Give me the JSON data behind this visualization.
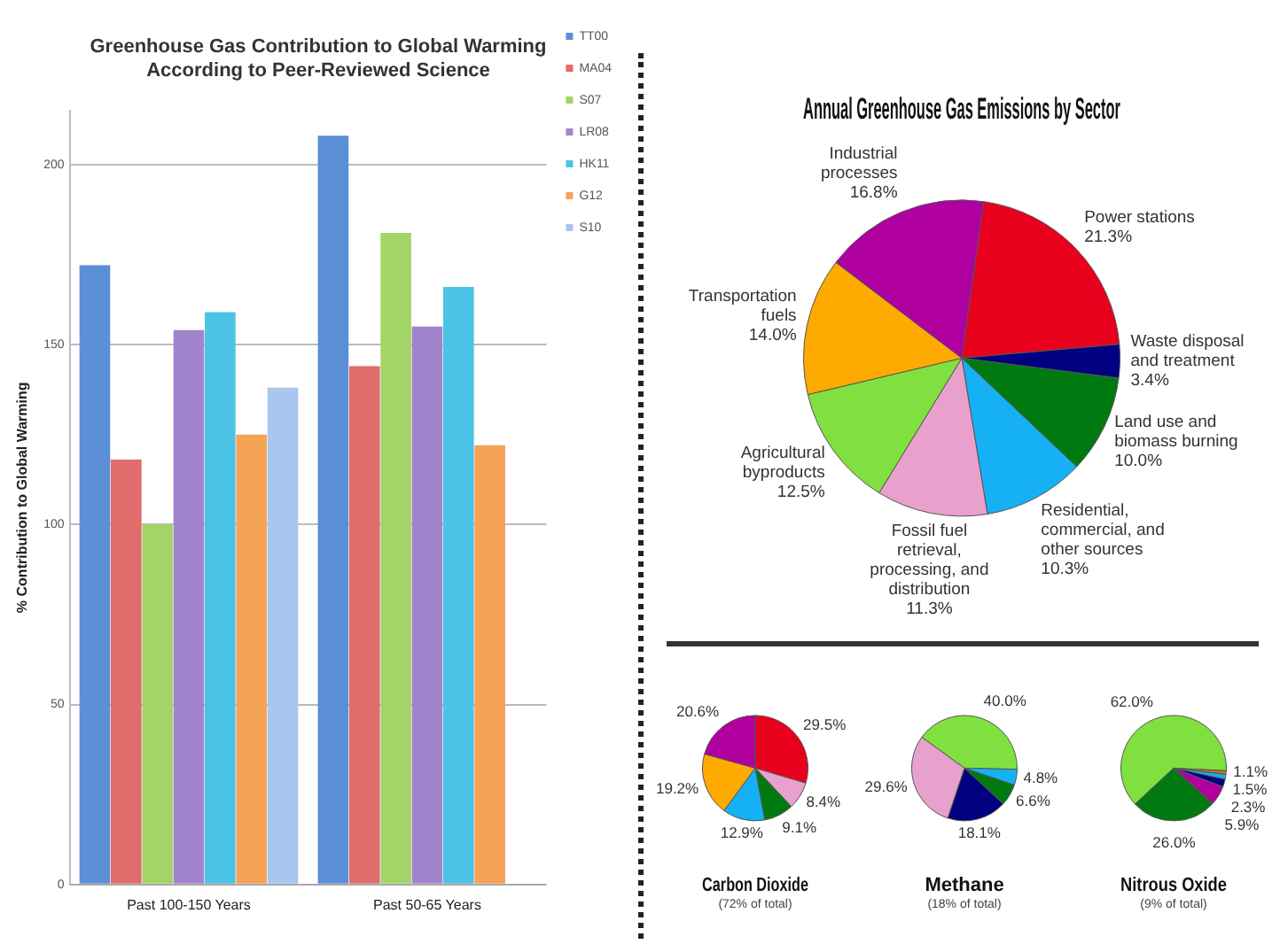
{
  "chart_data": [
    {
      "type": "bar",
      "title": "Greenhouse Gas Contribution to Global Warming According to Peer-Reviewed Science",
      "ylabel": "% Contribution to Global Warming",
      "categories": [
        "Past 100-150 Years",
        "Past 50-65 Years"
      ],
      "series": [
        {
          "name": "TT00",
          "color": "#5b8fd6",
          "values": [
            172,
            208
          ]
        },
        {
          "name": "MA04",
          "color": "#e26b6b",
          "values": [
            118,
            144
          ]
        },
        {
          "name": "S07",
          "color": "#a3d468",
          "values": [
            100,
            181
          ]
        },
        {
          "name": "LR08",
          "color": "#a184cc",
          "values": [
            154,
            155
          ]
        },
        {
          "name": "HK11",
          "color": "#4cc3e6",
          "values": [
            159,
            166
          ]
        },
        {
          "name": "G12",
          "color": "#f6a257",
          "values": [
            125,
            122
          ]
        },
        {
          "name": "S10",
          "color": "#a9c6ef",
          "values": [
            138,
            null
          ]
        }
      ],
      "ylim": [
        0,
        215
      ],
      "yticks": [
        0,
        50,
        100,
        150,
        200
      ],
      "grid": "y",
      "legend": "top right"
    },
    {
      "type": "pie",
      "title": "Annual Greenhouse Gas Emissions by Sector",
      "categories": [
        "Power stations",
        "Waste disposal and treatment",
        "Land use and biomass burning",
        "Residential, commercial, and other sources",
        "Fossil fuel retrieval, processing, and distribution",
        "Agricultural byproducts",
        "Transportation fuels",
        "Industrial processes"
      ],
      "values": [
        21.3,
        3.4,
        10.0,
        10.3,
        11.3,
        12.5,
        14.0,
        16.8
      ],
      "colors": [
        "#e8001c",
        "#000080",
        "#007a10",
        "#16b0f5",
        "#e8a0cc",
        "#80e040",
        "#ffaa00",
        "#b000a0"
      ],
      "value_labels": [
        "21.3%",
        "3.4%",
        "10.0%",
        "10.3%",
        "11.3%",
        "12.5%",
        "14.0%",
        "16.8%"
      ]
    },
    {
      "type": "pie",
      "title": "Carbon Dioxide",
      "subtitle": "(72% of total)",
      "categories": [
        null,
        null,
        null,
        null,
        null,
        null
      ],
      "values": [
        29.5,
        8.4,
        9.1,
        12.9,
        19.2,
        20.6
      ],
      "colors": [
        "#e8001c",
        "#e8a0cc",
        "#007a10",
        "#16b0f5",
        "#ffaa00",
        "#b000a0"
      ],
      "value_labels": [
        "29.5%",
        "8.4%",
        "9.1%",
        "12.9%",
        "19.2%",
        "20.6%"
      ]
    },
    {
      "type": "pie",
      "title": "Methane",
      "subtitle": "(18% of total)",
      "categories": [
        null,
        null,
        null,
        null,
        null
      ],
      "values": [
        40.0,
        4.8,
        6.6,
        18.1,
        29.6
      ],
      "colors": [
        "#80e040",
        "#16b0f5",
        "#007a10",
        "#000080",
        "#e8a0cc"
      ],
      "value_labels": [
        "40.0%",
        "4.8%",
        "6.6%",
        "18.1%",
        "29.6%"
      ]
    },
    {
      "type": "pie",
      "title": "Nitrous Oxide",
      "subtitle": "(9% of total)",
      "categories": [
        null,
        null,
        null,
        null,
        null,
        null
      ],
      "values": [
        62.0,
        1.1,
        1.5,
        2.3,
        5.9,
        26.0
      ],
      "colors": [
        "#80e040",
        "#c07a10",
        "#16b0f5",
        "#000080",
        "#b000a0",
        "#007a10"
      ],
      "value_labels": [
        "62.0%",
        "1.1%",
        "1.5%",
        "2.3%",
        "5.9%",
        "26.0%"
      ]
    }
  ]
}
